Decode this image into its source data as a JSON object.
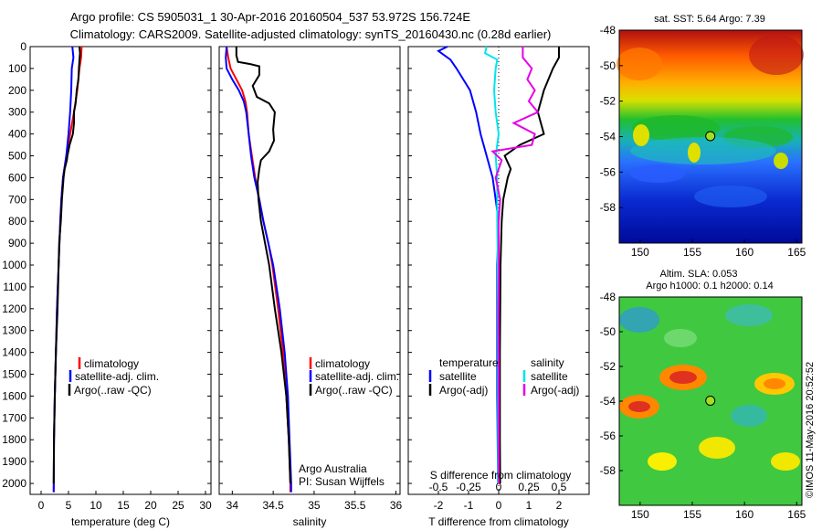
{
  "header": {
    "title_line1": "Argo profile: CS 5905031_1 30-Apr-2016 20160504_537 53.972S 156.724E",
    "title_line2": "Climatology: CARS2009. Satellite-adjusted climatology: synTS_20160430.nc (0.28d earlier)"
  },
  "timestamp": "©IMOS 11-May-2016 20:52:52",
  "colors": {
    "climatology": "#ff0000",
    "satellite_adj": "#0000ff",
    "argo": "#000000",
    "salinity_satellite": "#00e5ee",
    "salinity_argo": "#e600e6"
  },
  "chart_data": [
    {
      "type": "line",
      "id": "temperature",
      "xlabel": "temperature (deg C)",
      "xlim": [
        -2,
        31
      ],
      "xticks": [
        0,
        5,
        10,
        15,
        20,
        25,
        30
      ],
      "ylim": [
        2050,
        0
      ],
      "yticks": [
        0,
        100,
        200,
        300,
        400,
        500,
        600,
        700,
        800,
        900,
        1000,
        1100,
        1200,
        1300,
        1400,
        1500,
        1600,
        1700,
        1800,
        1900,
        2000
      ],
      "legend": [
        "climatology",
        "satellite-adj. clim.",
        "Argo(..raw -QC)"
      ],
      "series": [
        {
          "name": "climatology",
          "color": "#ff0000",
          "points": [
            [
              7.4,
              0
            ],
            [
              7.3,
              50
            ],
            [
              7.0,
              100
            ],
            [
              6.6,
              200
            ],
            [
              6.0,
              300
            ],
            [
              5.3,
              400
            ],
            [
              4.6,
              500
            ],
            [
              4.0,
              600
            ],
            [
              3.7,
              700
            ],
            [
              3.5,
              800
            ],
            [
              3.2,
              1000
            ],
            [
              2.9,
              1200
            ],
            [
              2.7,
              1400
            ],
            [
              2.5,
              1600
            ],
            [
              2.35,
              1800
            ],
            [
              2.3,
              2040
            ]
          ]
        },
        {
          "name": "satellite-adj. clim.",
          "color": "#0000ff",
          "points": [
            [
              5.7,
              0
            ],
            [
              5.9,
              50
            ],
            [
              5.6,
              100
            ],
            [
              5.5,
              200
            ],
            [
              5.3,
              300
            ],
            [
              5.0,
              400
            ],
            [
              4.6,
              500
            ],
            [
              4.0,
              600
            ],
            [
              3.7,
              700
            ],
            [
              3.5,
              800
            ],
            [
              3.2,
              1000
            ],
            [
              2.9,
              1200
            ],
            [
              2.7,
              1400
            ],
            [
              2.5,
              1600
            ],
            [
              2.35,
              1800
            ],
            [
              2.3,
              2040
            ]
          ]
        },
        {
          "name": "Argo(..raw -QC)",
          "color": "#000000",
          "points": [
            [
              7.0,
              0
            ],
            [
              7.1,
              30
            ],
            [
              7.0,
              60
            ],
            [
              6.9,
              100
            ],
            [
              6.8,
              150
            ],
            [
              6.5,
              200
            ],
            [
              6.3,
              260
            ],
            [
              6.0,
              300
            ],
            [
              6.0,
              350
            ],
            [
              5.8,
              400
            ],
            [
              5.2,
              450
            ],
            [
              4.8,
              500
            ],
            [
              4.7,
              520
            ],
            [
              4.3,
              560
            ],
            [
              4.1,
              600
            ],
            [
              3.8,
              700
            ],
            [
              3.6,
              800
            ],
            [
              3.3,
              900
            ],
            [
              3.2,
              1000
            ],
            [
              3.0,
              1200
            ],
            [
              2.7,
              1400
            ],
            [
              2.5,
              1600
            ],
            [
              2.35,
              1800
            ],
            [
              2.3,
              2000
            ]
          ]
        }
      ]
    },
    {
      "type": "line",
      "id": "salinity",
      "xlabel": "salinity",
      "xlim": [
        33.84,
        36.05
      ],
      "xticks": [
        34,
        34.5,
        35,
        35.5,
        36
      ],
      "ylim": [
        2050,
        0
      ],
      "legend": [
        "climatology",
        "satellite-adj. clim.",
        "Argo(..raw -QC)"
      ],
      "annotation": [
        "Argo Australia",
        "PI: Susan Wijffels"
      ],
      "series": [
        {
          "name": "climatology",
          "color": "#ff0000",
          "points": [
            [
              33.93,
              0
            ],
            [
              33.95,
              50
            ],
            [
              33.98,
              100
            ],
            [
              34.05,
              150
            ],
            [
              34.12,
              200
            ],
            [
              34.16,
              250
            ],
            [
              34.18,
              300
            ],
            [
              34.2,
              400
            ],
            [
              34.24,
              500
            ],
            [
              34.28,
              600
            ],
            [
              34.33,
              700
            ],
            [
              34.38,
              800
            ],
            [
              34.44,
              900
            ],
            [
              34.49,
              1000
            ],
            [
              34.56,
              1200
            ],
            [
              34.62,
              1400
            ],
            [
              34.66,
              1600
            ],
            [
              34.69,
              1800
            ],
            [
              34.71,
              2000
            ],
            [
              34.71,
              2040
            ]
          ]
        },
        {
          "name": "satellite-adj. clim.",
          "color": "#0000ff",
          "points": [
            [
              33.93,
              0
            ],
            [
              33.92,
              50
            ],
            [
              33.93,
              100
            ],
            [
              34.0,
              150
            ],
            [
              34.08,
              200
            ],
            [
              34.14,
              250
            ],
            [
              34.17,
              300
            ],
            [
              34.2,
              400
            ],
            [
              34.23,
              500
            ],
            [
              34.27,
              600
            ],
            [
              34.33,
              700
            ],
            [
              34.38,
              800
            ],
            [
              34.44,
              900
            ],
            [
              34.5,
              1000
            ],
            [
              34.58,
              1200
            ],
            [
              34.64,
              1400
            ],
            [
              34.68,
              1600
            ],
            [
              34.7,
              1800
            ],
            [
              34.72,
              2000
            ],
            [
              34.72,
              2040
            ]
          ]
        },
        {
          "name": "Argo(..raw -QC)",
          "color": "#000000",
          "points": [
            [
              34.05,
              0
            ],
            [
              34.05,
              40
            ],
            [
              34.07,
              70
            ],
            [
              34.22,
              80
            ],
            [
              34.33,
              90
            ],
            [
              34.33,
              130
            ],
            [
              34.25,
              180
            ],
            [
              34.3,
              230
            ],
            [
              34.45,
              260
            ],
            [
              34.52,
              300
            ],
            [
              34.5,
              380
            ],
            [
              34.51,
              430
            ],
            [
              34.45,
              480
            ],
            [
              34.35,
              520
            ],
            [
              34.33,
              560
            ],
            [
              34.31,
              620
            ],
            [
              34.32,
              700
            ],
            [
              34.35,
              800
            ],
            [
              34.4,
              900
            ],
            [
              34.45,
              1000
            ],
            [
              34.52,
              1200
            ],
            [
              34.6,
              1400
            ],
            [
              34.66,
              1600
            ],
            [
              34.69,
              1800
            ],
            [
              34.71,
              2000
            ]
          ]
        }
      ]
    },
    {
      "type": "line",
      "id": "difference",
      "xlabel": "T difference from climatology",
      "xlim": [
        -3,
        3
      ],
      "xticks": [
        -2,
        -1,
        0,
        1,
        2
      ],
      "top_axis_label": "S difference from climatology",
      "top_ticks": [
        "-0.5",
        "-0.25",
        "0",
        "0.25",
        "0.5"
      ],
      "ylim": [
        2050,
        0
      ],
      "legend_groups": [
        {
          "title": "temperature",
          "items": [
            "satellite",
            "Argo(-adj)"
          ]
        },
        {
          "title": "salinity",
          "items": [
            "satellite",
            "Argo(-adj)"
          ]
        }
      ],
      "series": [
        {
          "name": "temperature satellite",
          "color": "#0000ff",
          "points": [
            [
              -1.7,
              0
            ],
            [
              -2.0,
              20
            ],
            [
              -1.6,
              60
            ],
            [
              -1.4,
              100
            ],
            [
              -0.95,
              200
            ],
            [
              -0.75,
              300
            ],
            [
              -0.6,
              400
            ],
            [
              -0.4,
              500
            ],
            [
              -0.2,
              600
            ],
            [
              -0.1,
              700
            ],
            [
              0,
              800
            ],
            [
              -0.05,
              1000
            ],
            [
              -0.05,
              1300
            ],
            [
              -0.05,
              1600
            ],
            [
              -0.02,
              2000
            ]
          ]
        },
        {
          "name": "temperature Argo(-adj)",
          "color": "#000000",
          "points": [
            [
              2.0,
              0
            ],
            [
              2.0,
              50
            ],
            [
              1.8,
              100
            ],
            [
              1.5,
              200
            ],
            [
              1.3,
              300
            ],
            [
              1.5,
              400
            ],
            [
              0.7,
              450
            ],
            [
              0.2,
              500
            ],
            [
              0.4,
              560
            ],
            [
              0.3,
              600
            ],
            [
              0.15,
              700
            ],
            [
              0.1,
              800
            ],
            [
              0.06,
              1000
            ],
            [
              0.04,
              1400
            ],
            [
              0.04,
              1800
            ],
            [
              0.05,
              2000
            ]
          ]
        },
        {
          "name": "salinity satellite",
          "color": "#00e5ee",
          "points": [
            [
              -0.4,
              0
            ],
            [
              -0.45,
              30
            ],
            [
              -0.05,
              60
            ],
            [
              -0.1,
              100
            ],
            [
              -0.15,
              200
            ],
            [
              -0.1,
              300
            ],
            [
              0.0,
              400
            ],
            [
              -0.1,
              500
            ],
            [
              -0.05,
              600
            ],
            [
              -0.05,
              800
            ],
            [
              -0.03,
              1000
            ],
            [
              -0.02,
              1400
            ],
            [
              -0.02,
              1800
            ],
            [
              -0.02,
              2000
            ]
          ]
        },
        {
          "name": "salinity Argo(-adj)",
          "color": "#e600e6",
          "points": [
            [
              0.8,
              0
            ],
            [
              0.8,
              50
            ],
            [
              1.1,
              100
            ],
            [
              0.95,
              150
            ],
            [
              1.2,
              200
            ],
            [
              1.0,
              250
            ],
            [
              1.3,
              300
            ],
            [
              0.5,
              350
            ],
            [
              1.2,
              400
            ],
            [
              1.1,
              450
            ],
            [
              -0.2,
              480
            ],
            [
              0.1,
              520
            ],
            [
              -0.1,
              600
            ],
            [
              0.05,
              700
            ],
            [
              0.0,
              800
            ],
            [
              0.0,
              1000
            ],
            [
              -0.01,
              1200
            ],
            [
              0.0,
              1500
            ],
            [
              0.0,
              2000
            ]
          ]
        }
      ]
    },
    {
      "type": "heatmap",
      "id": "sst-map",
      "title": "sat. SST: 5.64  Argo: 7.39",
      "xlim": [
        148,
        165.5
      ],
      "ylim": [
        -60,
        -48
      ],
      "xticks": [
        150,
        155,
        160,
        165
      ],
      "yticks": [
        -48,
        -50,
        -52,
        -54,
        -56,
        -58
      ],
      "marker": {
        "lon": 156.724,
        "lat": -53.972
      }
    },
    {
      "type": "heatmap",
      "id": "sla-map",
      "title": "Altim. SLA: 0.053",
      "subtitle": "Argo h1000: 0.1  h2000: 0.14",
      "xlim": [
        148,
        165.5
      ],
      "ylim": [
        -60,
        -48
      ],
      "xticks": [
        150,
        155,
        160,
        165
      ],
      "yticks": [
        -48,
        -50,
        -52,
        -54,
        -56,
        -58
      ],
      "marker": {
        "lon": 156.724,
        "lat": -53.972
      }
    }
  ]
}
